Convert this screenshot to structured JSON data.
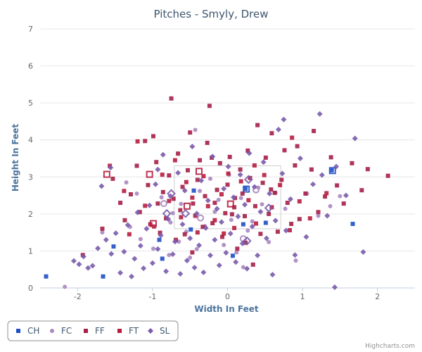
{
  "chart_data": {
    "type": "scatter",
    "title": "Pitches - Smyly, Drew",
    "xlabel": "Width In Feet",
    "ylabel": "Height In Feet",
    "xlim": [
      -2.5,
      2.5
    ],
    "ylim": [
      0,
      7
    ],
    "xticks": [
      -2,
      -1,
      0,
      1,
      2
    ],
    "yticks": [
      0,
      1,
      2,
      3,
      4,
      5,
      6,
      7
    ],
    "grid": true,
    "legend_position": "bottom-left",
    "strike_zone": {
      "x": [
        -0.71,
        0.71
      ],
      "y": [
        1.6,
        3.3
      ]
    },
    "credit": "Highcharts.com",
    "series": [
      {
        "name": "CH",
        "color": "#1f4fc6",
        "marker": "square",
        "points": [
          [
            -2.42,
            0.31
          ],
          [
            -1.66,
            0.31
          ],
          [
            -1.52,
            1.12
          ],
          [
            -0.91,
            1.3
          ],
          [
            -0.87,
            0.79
          ],
          [
            -0.49,
            1.58
          ],
          [
            0.07,
            0.87
          ],
          [
            0.21,
            1.72
          ],
          [
            0.51,
            1.76
          ],
          [
            1.67,
            1.73
          ],
          [
            -0.45,
            2.63
          ],
          [
            0.24,
            2.68
          ],
          [
            1.39,
            3.18
          ]
        ],
        "hollow_points": [
          [
            0.25,
            2.67
          ],
          [
            1.4,
            3.17
          ]
        ]
      },
      {
        "name": "FC",
        "color": "#a988c0",
        "marker": "circle",
        "points": [
          [
            -2.17,
            0.03
          ],
          [
            -1.67,
            1.5
          ],
          [
            -1.3,
            1.65
          ],
          [
            -1.16,
            1.32
          ],
          [
            -0.99,
            1.06
          ],
          [
            -0.78,
            0.89
          ],
          [
            -0.76,
            1.77
          ],
          [
            -0.73,
            2.02
          ],
          [
            -0.62,
            2.27
          ],
          [
            -0.55,
            1.52
          ],
          [
            -0.5,
            0.82
          ],
          [
            -0.43,
            4.27
          ],
          [
            -0.37,
            2.62
          ],
          [
            -0.3,
            1.67
          ],
          [
            -0.23,
            2.95
          ],
          [
            -0.12,
            2.38
          ],
          [
            -0.05,
            1.16
          ],
          [
            0.05,
            1.84
          ],
          [
            0.12,
            0.96
          ],
          [
            0.18,
            2.43
          ],
          [
            0.21,
            0.56
          ],
          [
            0.33,
            1.8
          ],
          [
            0.41,
            2.71
          ],
          [
            0.55,
            1.24
          ],
          [
            0.64,
            2.57
          ],
          [
            0.77,
            2.14
          ],
          [
            0.91,
            0.74
          ],
          [
            1.06,
            2.55
          ],
          [
            1.21,
            1.95
          ],
          [
            1.37,
            2.21
          ],
          [
            1.5,
            2.48
          ],
          [
            -1.35,
            2.85
          ],
          [
            -1.21,
            2.55
          ],
          [
            -0.88,
            2.45
          ],
          [
            -0.65,
            1.25
          ],
          [
            -0.41,
            1.05
          ],
          [
            -0.17,
            2.06
          ],
          [
            0.02,
            3.06
          ],
          [
            0.27,
            1.55
          ],
          [
            0.46,
            2.26
          ]
        ],
        "hollow_points": [
          [
            -0.85,
            2.28
          ],
          [
            -0.36,
            1.89
          ],
          [
            0.21,
            1.33
          ],
          [
            0.38,
            2.65
          ]
        ]
      },
      {
        "name": "FF",
        "color": "#a62048",
        "marker": "square",
        "points": [
          [
            -1.67,
            1.6
          ],
          [
            -1.53,
            2.95
          ],
          [
            -1.43,
            2.3
          ],
          [
            -1.37,
            1.83
          ],
          [
            -1.29,
            2.53
          ],
          [
            -1.21,
            3.3
          ],
          [
            -1.17,
            2.05
          ],
          [
            -1.1,
            3.97
          ],
          [
            -1.06,
            2.78
          ],
          [
            -1.03,
            1.72
          ],
          [
            -0.99,
            4.1
          ],
          [
            -0.95,
            3.4
          ],
          [
            -0.9,
            1.49
          ],
          [
            -0.86,
            2.59
          ],
          [
            -0.82,
            1.88
          ],
          [
            -0.78,
            3.04
          ],
          [
            -0.75,
            5.12
          ],
          [
            -0.72,
            2.41
          ],
          [
            -0.69,
            1.3
          ],
          [
            -0.66,
            3.63
          ],
          [
            -0.63,
            2.1
          ],
          [
            -0.6,
            2.73
          ],
          [
            -0.57,
            1.45
          ],
          [
            -0.53,
            3.18
          ],
          [
            -0.5,
            4.2
          ],
          [
            -0.46,
            2.28
          ],
          [
            -0.43,
            1.95
          ],
          [
            -0.4,
            2.92
          ],
          [
            -0.37,
            3.45
          ],
          [
            -0.33,
            1.65
          ],
          [
            -0.3,
            2.48
          ],
          [
            -0.27,
            3.92
          ],
          [
            -0.24,
            4.92
          ],
          [
            -0.2,
            1.75
          ],
          [
            -0.17,
            2.3
          ],
          [
            -0.14,
            2.65
          ],
          [
            -0.1,
            3.37
          ],
          [
            -0.07,
            1.38
          ],
          [
            -0.03,
            2.02
          ],
          [
            0.0,
            2.79
          ],
          [
            0.03,
            3.54
          ],
          [
            0.06,
            1.99
          ],
          [
            0.1,
            2.43
          ],
          [
            0.13,
            1.06
          ],
          [
            0.17,
            3.2
          ],
          [
            0.2,
            2.55
          ],
          [
            0.23,
            1.94
          ],
          [
            0.27,
            3.71
          ],
          [
            0.3,
            2.97
          ],
          [
            0.34,
            0.63
          ],
          [
            0.37,
            2.21
          ],
          [
            0.4,
            4.4
          ],
          [
            0.44,
            1.46
          ],
          [
            0.47,
            2.84
          ],
          [
            0.51,
            3.52
          ],
          [
            0.55,
            2.0
          ],
          [
            0.59,
            4.18
          ],
          [
            0.63,
            2.57
          ],
          [
            0.67,
            1.52
          ],
          [
            0.72,
            2.92
          ],
          [
            0.76,
            3.72
          ],
          [
            0.8,
            2.3
          ],
          [
            0.85,
            1.73
          ],
          [
            0.9,
            3.31
          ],
          [
            0.96,
            1.86
          ],
          [
            1.04,
            2.55
          ],
          [
            1.12,
            3.2
          ],
          [
            1.21,
            2.05
          ],
          [
            1.3,
            2.47
          ],
          [
            1.38,
            3.53
          ],
          [
            1.46,
            2.77
          ],
          [
            1.55,
            2.28
          ],
          [
            1.66,
            3.37
          ],
          [
            1.79,
            2.64
          ],
          [
            1.87,
            3.21
          ],
          [
            2.14,
            3.03
          ],
          [
            -1.93,
            0.89
          ],
          [
            -0.93,
            2.28
          ],
          [
            -0.47,
            0.96
          ],
          [
            0.24,
            1.22
          ],
          [
            0.58,
            2.66
          ],
          [
            0.93,
            3.83
          ],
          [
            1.15,
            4.24
          ],
          [
            -0.21,
            3.52
          ],
          [
            0.09,
            2.18
          ]
        ],
        "hollow_points": []
      },
      {
        "name": "FT",
        "color": "#b91c3f",
        "marker": "square",
        "points": [
          [
            -1.57,
            3.3
          ],
          [
            -1.38,
            2.62
          ],
          [
            -1.2,
            3.96
          ],
          [
            -1.1,
            2.22
          ],
          [
            -0.98,
            1.66
          ],
          [
            -0.87,
            3.06
          ],
          [
            -0.78,
            2.35
          ],
          [
            -0.7,
            3.45
          ],
          [
            -0.62,
            1.91
          ],
          [
            -0.55,
            2.86
          ],
          [
            -0.47,
            2.44
          ],
          [
            -0.4,
            1.5
          ],
          [
            -0.32,
            3.02
          ],
          [
            -0.26,
            2.21
          ],
          [
            -0.17,
            1.83
          ],
          [
            -0.08,
            2.53
          ],
          [
            0.01,
            3.09
          ],
          [
            0.09,
            1.62
          ],
          [
            0.18,
            2.88
          ],
          [
            0.28,
            2.37
          ],
          [
            0.38,
            1.74
          ],
          [
            0.49,
            3.05
          ],
          [
            0.59,
            2.18
          ],
          [
            0.7,
            2.78
          ],
          [
            0.83,
            1.56
          ],
          [
            0.96,
            2.34
          ],
          [
            1.1,
            1.88
          ],
          [
            1.32,
            2.56
          ],
          [
            -1.31,
            1.45
          ],
          [
            -0.05,
            1.47
          ],
          [
            0.36,
            3.31
          ],
          [
            0.86,
            4.06
          ]
        ],
        "hollow_points": [
          [
            -1.61,
            3.07
          ],
          [
            -1.04,
            3.07
          ],
          [
            -0.99,
            1.74
          ],
          [
            -0.54,
            2.21
          ],
          [
            -0.38,
            3.15
          ],
          [
            0.04,
            2.27
          ]
        ]
      },
      {
        "name": "SL",
        "color": "#7a5bab",
        "marker": "diamond",
        "points": [
          [
            -2.05,
            0.73
          ],
          [
            -1.98,
            0.64
          ],
          [
            -1.92,
            0.85
          ],
          [
            -1.86,
            0.54
          ],
          [
            -1.8,
            0.6
          ],
          [
            -1.73,
            1.07
          ],
          [
            -1.68,
            2.75
          ],
          [
            -1.62,
            1.3
          ],
          [
            -1.55,
            0.92
          ],
          [
            -1.49,
            1.48
          ],
          [
            -1.43,
            0.41
          ],
          [
            -1.38,
            0.98
          ],
          [
            -1.33,
            1.7
          ],
          [
            -1.28,
            0.31
          ],
          [
            -1.24,
            0.79
          ],
          [
            -1.2,
            2.04
          ],
          [
            -1.16,
            1.14
          ],
          [
            -1.12,
            0.53
          ],
          [
            -1.08,
            1.6
          ],
          [
            -1.04,
            2.23
          ],
          [
            -1.0,
            0.67
          ],
          [
            -0.96,
            2.8
          ],
          [
            -0.93,
            1.05
          ],
          [
            -0.89,
            1.42
          ],
          [
            -0.86,
            3.6
          ],
          [
            -0.82,
            0.45
          ],
          [
            -0.79,
            1.86
          ],
          [
            -0.76,
            2.48
          ],
          [
            -0.73,
            0.91
          ],
          [
            -0.7,
            1.25
          ],
          [
            -0.66,
            3.11
          ],
          [
            -0.63,
            0.38
          ],
          [
            -0.6,
            1.72
          ],
          [
            -0.57,
            2.63
          ],
          [
            -0.54,
            0.74
          ],
          [
            -0.5,
            1.34
          ],
          [
            -0.47,
            3.82
          ],
          [
            -0.44,
            0.55
          ],
          [
            -0.41,
            2.01
          ],
          [
            -0.38,
            1.15
          ],
          [
            -0.35,
            2.9
          ],
          [
            -0.32,
            0.42
          ],
          [
            -0.29,
            1.62
          ],
          [
            -0.26,
            2.36
          ],
          [
            -0.23,
            0.88
          ],
          [
            -0.2,
            3.55
          ],
          [
            -0.17,
            1.3
          ],
          [
            -0.14,
            2.14
          ],
          [
            -0.11,
            0.61
          ],
          [
            -0.08,
            1.78
          ],
          [
            -0.05,
            2.68
          ],
          [
            -0.02,
            0.95
          ],
          [
            0.01,
            3.28
          ],
          [
            0.04,
            1.47
          ],
          [
            0.08,
            2.45
          ],
          [
            0.11,
            0.7
          ],
          [
            0.14,
            1.93
          ],
          [
            0.17,
            3.06
          ],
          [
            0.2,
            1.2
          ],
          [
            0.23,
            2.25
          ],
          [
            0.26,
            0.52
          ],
          [
            0.29,
            3.64
          ],
          [
            0.33,
            1.66
          ],
          [
            0.36,
            2.73
          ],
          [
            0.4,
            0.88
          ],
          [
            0.44,
            2.06
          ],
          [
            0.48,
            3.4
          ],
          [
            0.52,
            1.34
          ],
          [
            0.56,
            2.55
          ],
          [
            0.6,
            0.36
          ],
          [
            0.64,
            1.82
          ],
          [
            0.68,
            4.28
          ],
          [
            0.73,
            3.09
          ],
          [
            0.78,
            1.55
          ],
          [
            0.84,
            2.4
          ],
          [
            0.9,
            0.89
          ],
          [
            0.97,
            3.5
          ],
          [
            1.05,
            1.38
          ],
          [
            1.14,
            2.8
          ],
          [
            1.23,
            4.7
          ],
          [
            1.33,
            1.95
          ],
          [
            1.45,
            3.28
          ],
          [
            1.58,
            2.5
          ],
          [
            1.7,
            4.04
          ],
          [
            1.81,
            0.97
          ],
          [
            1.43,
            0.02
          ],
          [
            1.26,
            3.05
          ],
          [
            0.75,
            4.55
          ],
          [
            -0.93,
            3.2
          ],
          [
            -1.56,
            3.25
          ]
        ],
        "hollow_points": [
          [
            -0.75,
            2.55
          ],
          [
            -0.81,
            2.01
          ],
          [
            -0.56,
            2.01
          ],
          [
            0.26,
            1.27
          ],
          [
            0.55,
            2.16
          ],
          [
            0.28,
            2.93
          ]
        ]
      }
    ]
  }
}
